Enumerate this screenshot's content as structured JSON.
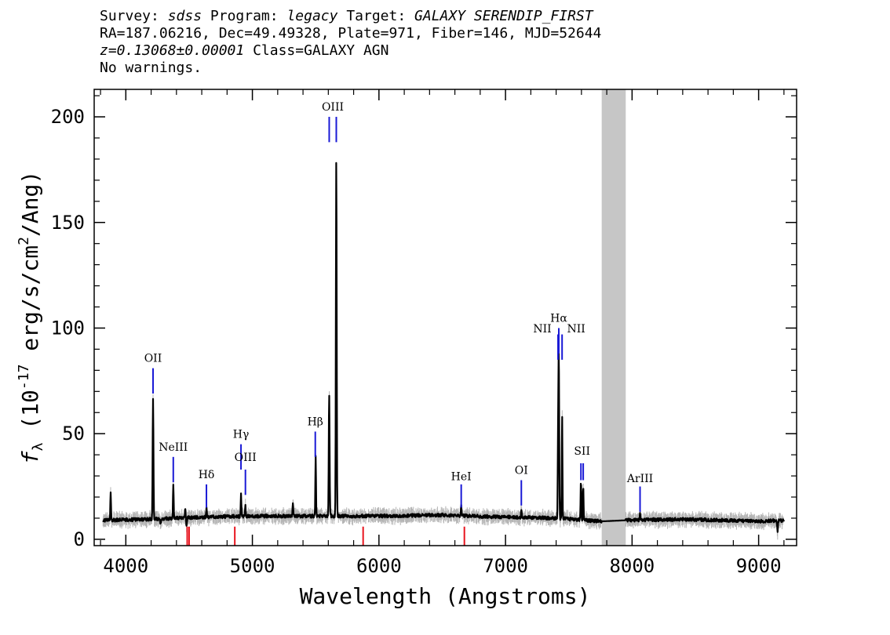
{
  "header": {
    "survey_label": "Survey:",
    "survey": "sdss",
    "program_label": "Program:",
    "program": "legacy",
    "target_label": "Target:",
    "target": "GALAXY SERENDIP_FIRST",
    "line2": "RA=187.06216, Dec=49.49328, Plate=971, Fiber=146, MJD=52644",
    "redshift": "z=0.13068±0.00001",
    "class_text": "Class=GALAXY AGN",
    "warnings": "No warnings."
  },
  "chart_data": {
    "type": "line",
    "xlabel": "Wavelength (Angstroms)",
    "ylabel": "f_λ (10^-17 erg/s/cm^2/Ang)",
    "xlim": [
      3750,
      9300
    ],
    "ylim": [
      -3,
      213
    ],
    "xticks": [
      4000,
      5000,
      6000,
      7000,
      8000,
      9000
    ],
    "yticks": [
      0,
      50,
      100,
      150,
      200
    ],
    "masked_region": [
      7760,
      7950
    ],
    "continuum": [
      [
        3820,
        9
      ],
      [
        4200,
        9.5
      ],
      [
        4600,
        10.5
      ],
      [
        5000,
        11
      ],
      [
        5500,
        11
      ],
      [
        6000,
        11
      ],
      [
        6500,
        11.5
      ],
      [
        7000,
        10.5
      ],
      [
        7400,
        10
      ],
      [
        7760,
        8.5
      ],
      [
        7950,
        9
      ],
      [
        8400,
        9.5
      ],
      [
        9000,
        8.5
      ],
      [
        9200,
        9
      ]
    ],
    "emission_peaks": [
      {
        "x": 3880,
        "y": 22
      },
      {
        "x": 4215,
        "y": 66
      },
      {
        "x": 4375,
        "y": 26
      },
      {
        "x": 4470,
        "y": 15
      },
      {
        "x": 4637,
        "y": 15
      },
      {
        "x": 4910,
        "y": 21
      },
      {
        "x": 4945,
        "y": 16
      },
      {
        "x": 5320,
        "y": 17
      },
      {
        "x": 5500,
        "y": 39
      },
      {
        "x": 5607,
        "y": 69
      },
      {
        "x": 5663,
        "y": 180
      },
      {
        "x": 6650,
        "y": 16
      },
      {
        "x": 7125,
        "y": 14
      },
      {
        "x": 7415,
        "y": 40
      },
      {
        "x": 7421,
        "y": 87
      },
      {
        "x": 7447,
        "y": 58
      },
      {
        "x": 7596,
        "y": 28
      },
      {
        "x": 7614,
        "y": 25
      },
      {
        "x": 8063,
        "y": 12
      }
    ],
    "absorption_dips": [
      {
        "x": 4275,
        "y": 7
      },
      {
        "x": 4480,
        "y": 6
      },
      {
        "x": 9150,
        "y": 4
      }
    ],
    "emission_lines": [
      {
        "label": "OII",
        "x": [
          4215
        ],
        "label_y": 84,
        "line_range": [
          69,
          81
        ]
      },
      {
        "label": "NeIII",
        "x": [
          4375
        ],
        "label_y": 42,
        "line_range": [
          27,
          39
        ]
      },
      {
        "label": "Hδ",
        "x": [
          4637
        ],
        "label_y": 29,
        "line_range": [
          15,
          26
        ]
      },
      {
        "label": "Hγ",
        "x": [
          4910
        ],
        "label_y": 48,
        "line_range": [
          33,
          45
        ]
      },
      {
        "label": "OIII",
        "x": [
          4945
        ],
        "label_y": 37,
        "line_range": [
          21,
          33
        ]
      },
      {
        "label": "Hβ",
        "x": [
          5497
        ],
        "label_y": 54,
        "line_range": [
          39,
          51
        ]
      },
      {
        "label": "OIII",
        "x": [
          5607,
          5663
        ],
        "label_y": 203,
        "line_range": [
          188,
          200
        ]
      },
      {
        "label": "HeI",
        "x": [
          6650
        ],
        "label_y": 28,
        "line_range": [
          15,
          26
        ]
      },
      {
        "label": "OI",
        "x": [
          7125
        ],
        "label_y": 31,
        "line_range": [
          16,
          28
        ]
      },
      {
        "label": "NII",
        "x": [
          7415
        ],
        "label_y": 98,
        "line_range": [
          85,
          97
        ]
      },
      {
        "label": "Hα",
        "x": [
          7421
        ],
        "label_y": 103,
        "line_range": [
          88,
          100
        ]
      },
      {
        "label": "NII",
        "x": [
          7447
        ],
        "label_y": 98,
        "line_range": [
          85,
          97
        ]
      },
      {
        "label": "SII",
        "x": [
          7596,
          7614
        ],
        "label_y": 40,
        "line_range": [
          28,
          36
        ]
      },
      {
        "label": "ArIII",
        "x": [
          8063
        ],
        "label_y": 27,
        "line_range": [
          13,
          25
        ]
      }
    ],
    "absorption_markers": [
      4485,
      4500,
      4861,
      5875,
      6675
    ],
    "colors": {
      "spectrum": "#000000",
      "error": "#b4b4b4",
      "emission_marker": "#1a1ad6",
      "absorption_marker": "#e8141e",
      "masked": "#c6c6c6"
    }
  }
}
